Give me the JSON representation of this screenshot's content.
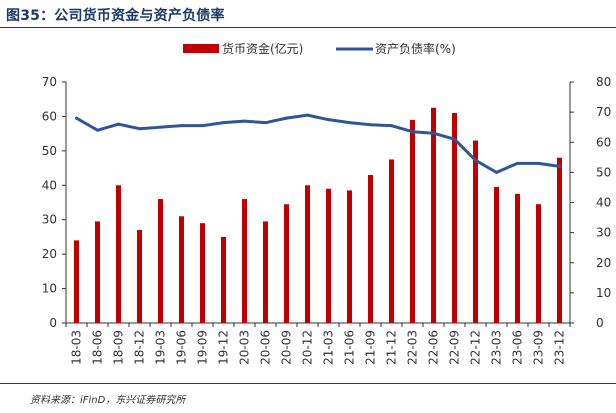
{
  "figure_title": "图35：公司货币资金与资产负债率",
  "source_note": "资料来源：iFinD，东兴证券研究所",
  "colors": {
    "bar": "#c00000",
    "line": "#2f5597",
    "title": "#1a3a6b",
    "axis": "#333333"
  },
  "chart_data": {
    "type": "bar+line",
    "title": "",
    "categories": [
      "18-03",
      "18-06",
      "18-09",
      "18-12",
      "19-03",
      "19-06",
      "19-09",
      "19-12",
      "20-03",
      "20-06",
      "20-09",
      "20-12",
      "21-03",
      "21-06",
      "21-09",
      "21-12",
      "22-03",
      "22-06",
      "22-09",
      "22-12",
      "23-03",
      "23-06",
      "23-09",
      "23-12"
    ],
    "series": [
      {
        "name": "货币资金(亿元)",
        "type": "bar",
        "axis": "left",
        "values": [
          24.0,
          29.5,
          40.0,
          27.0,
          36.0,
          31.0,
          29.0,
          25.0,
          36.0,
          29.5,
          34.5,
          40.0,
          39.0,
          38.5,
          43.0,
          47.5,
          59.0,
          62.5,
          61.0,
          53.0,
          39.5,
          37.5,
          34.5,
          48.0
        ]
      },
      {
        "name": "资产负债率(%)",
        "type": "line",
        "axis": "right",
        "values": [
          68.0,
          64.0,
          66.0,
          64.5,
          65.0,
          65.5,
          65.5,
          66.5,
          67.0,
          66.5,
          68.0,
          69.0,
          67.5,
          66.5,
          65.8,
          65.5,
          63.5,
          63.0,
          61.0,
          54.0,
          50.0,
          53.0,
          53.0,
          52.0
        ]
      }
    ],
    "left_axis": {
      "min": 0,
      "max": 70,
      "ticks": [
        0,
        10,
        20,
        30,
        40,
        50,
        60,
        70
      ]
    },
    "right_axis": {
      "min": 0,
      "max": 80,
      "ticks": [
        0,
        10,
        20,
        30,
        40,
        50,
        60,
        70,
        80
      ]
    },
    "legend": {
      "position": "top",
      "entries": [
        "货币资金(亿元)",
        "资产负债率(%)"
      ]
    },
    "grid": false
  }
}
